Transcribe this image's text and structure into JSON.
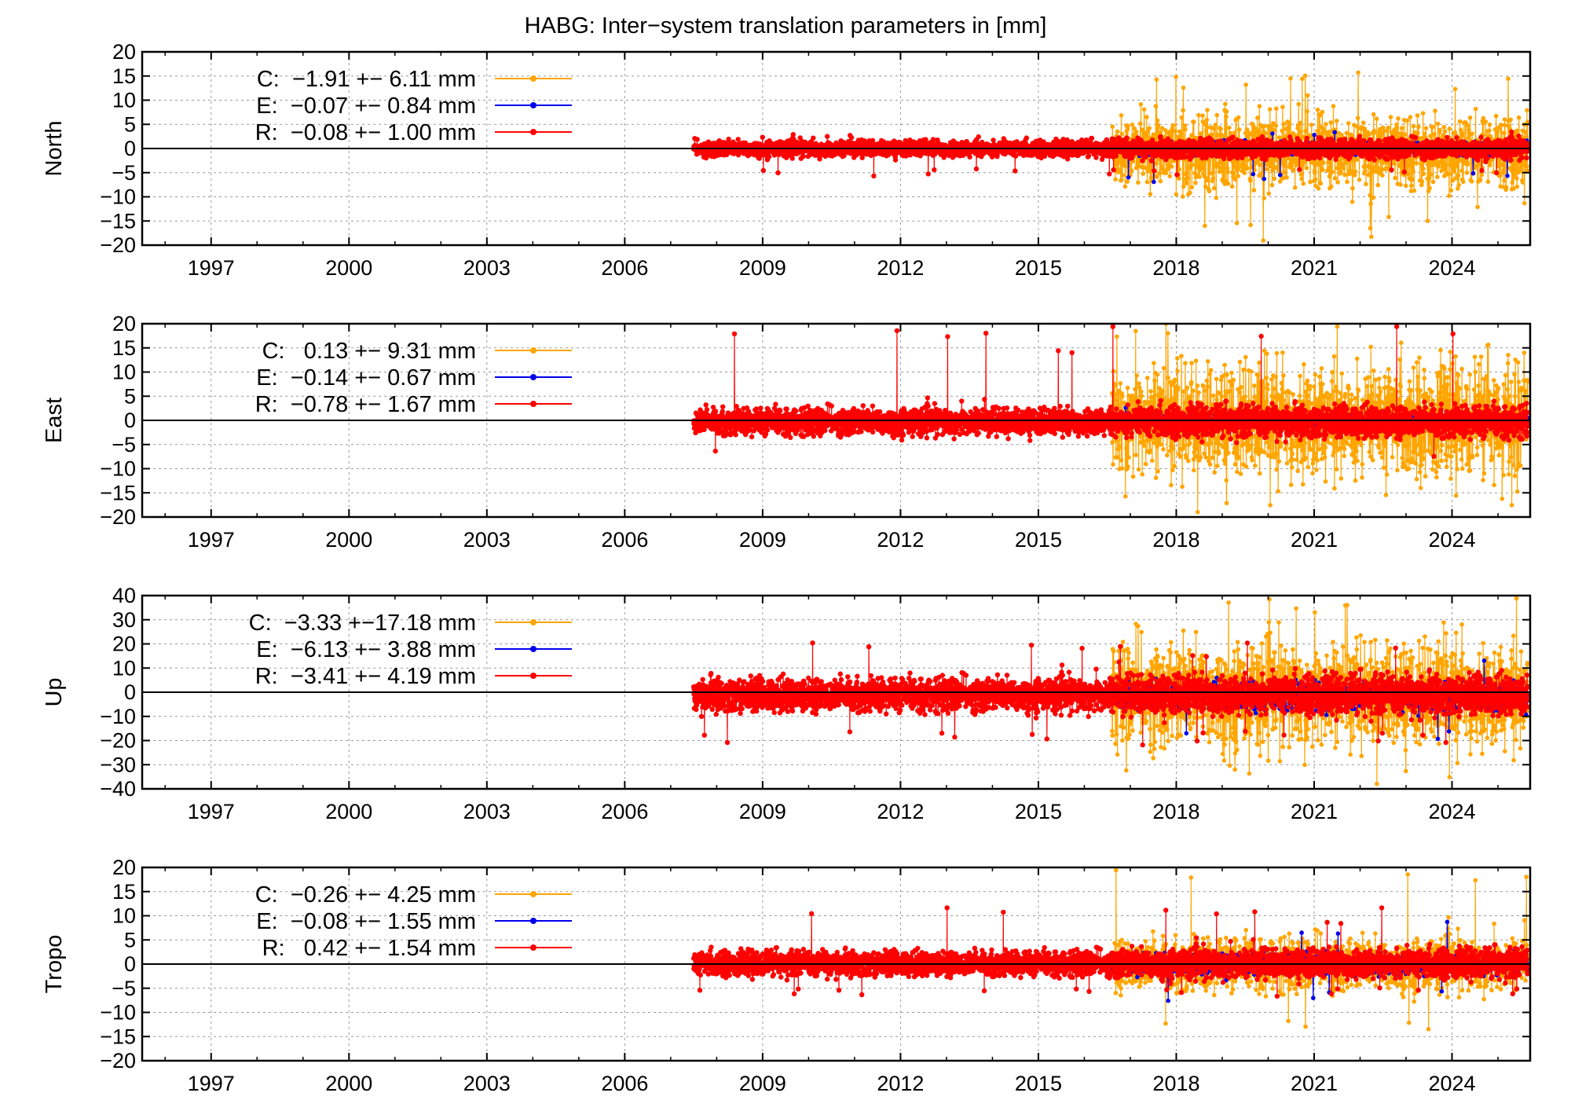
{
  "title": "HABG: Inter−system translation parameters in [mm]",
  "colors": {
    "C": "#ffa500",
    "E": "#0000ee",
    "R": "#ff0000",
    "axis": "#000000",
    "grid": "#9a9a9a"
  },
  "chart_data": [
    {
      "type": "scatter",
      "ylabel": "North",
      "xlim": [
        1995.5,
        2025.7
      ],
      "ylim": [
        -20,
        20
      ],
      "yticks": [
        -20,
        -15,
        -10,
        -5,
        0,
        5,
        10,
        15,
        20
      ],
      "xticks": [
        1997,
        2000,
        2003,
        2006,
        2009,
        2012,
        2015,
        2018,
        2021,
        2024
      ],
      "grid": true,
      "legend_position": "top-left",
      "series": [
        {
          "name": "C",
          "label": "C:  −1.91 +− 6.11 mm",
          "color": "C",
          "start": 2016.6,
          "end": 2025.65,
          "sigma": 6.11,
          "mean": -1.91,
          "spike_top": 17.5,
          "spike_bottom": -20
        },
        {
          "name": "E",
          "label": "E:  −0.07 +− 0.84 mm",
          "color": "E",
          "start": 2016.6,
          "end": 2025.65,
          "sigma": 0.84,
          "mean": -0.07,
          "spike_top": 3.5,
          "spike_bottom": -7
        },
        {
          "name": "R",
          "label": "R:  −0.08 +− 1.00 mm",
          "color": "R",
          "start": 2007.5,
          "end": 2025.65,
          "sigma": 1.0,
          "mean": -0.08,
          "spike_top": 2.5,
          "spike_bottom": -6
        }
      ]
    },
    {
      "type": "scatter",
      "ylabel": "East",
      "xlim": [
        1995.5,
        2025.7
      ],
      "ylim": [
        -20,
        20
      ],
      "yticks": [
        -20,
        -15,
        -10,
        -5,
        0,
        5,
        10,
        15,
        20
      ],
      "xticks": [
        1997,
        2000,
        2003,
        2006,
        2009,
        2012,
        2015,
        2018,
        2021,
        2024
      ],
      "grid": true,
      "legend_position": "top-left",
      "series": [
        {
          "name": "C",
          "label": "C:   0.13 +− 9.31 mm",
          "color": "C",
          "start": 2016.6,
          "end": 2025.65,
          "sigma": 9.31,
          "mean": 0.13,
          "spike_top": 20,
          "spike_bottom": -20
        },
        {
          "name": "E",
          "label": "E:  −0.14 +− 0.67 mm",
          "color": "E",
          "start": 2016.6,
          "end": 2025.65,
          "sigma": 0.67,
          "mean": -0.14,
          "spike_top": 3,
          "spike_bottom": -3
        },
        {
          "name": "R",
          "label": "R:  −0.78 +− 1.67 mm",
          "color": "R",
          "start": 2007.5,
          "end": 2025.65,
          "sigma": 1.67,
          "mean": -0.78,
          "spike_top": 20,
          "spike_bottom": -4
        }
      ]
    },
    {
      "type": "scatter",
      "ylabel": "Up",
      "xlim": [
        1995.5,
        2025.7
      ],
      "ylim": [
        -40,
        40
      ],
      "yticks": [
        -40,
        -30,
        -20,
        -10,
        0,
        10,
        20,
        30,
        40
      ],
      "xticks": [
        1997,
        2000,
        2003,
        2006,
        2009,
        2012,
        2015,
        2018,
        2021,
        2024
      ],
      "grid": true,
      "legend_position": "top-left",
      "series": [
        {
          "name": "C",
          "label": "C:  −3.33 +−17.18 mm",
          "color": "C",
          "start": 2016.6,
          "end": 2025.65,
          "sigma": 17.18,
          "mean": -3.33,
          "spike_top": 40,
          "spike_bottom": -40
        },
        {
          "name": "E",
          "label": "E:  −6.13 +− 3.88 mm",
          "color": "E",
          "start": 2016.6,
          "end": 2025.65,
          "sigma": 3.88,
          "mean": -6.13,
          "spike_top": 15,
          "spike_bottom": -22
        },
        {
          "name": "R",
          "label": "R:  −3.41 +− 4.19 mm",
          "color": "R",
          "start": 2007.5,
          "end": 2025.65,
          "sigma": 4.19,
          "mean": -3.41,
          "spike_top": 21,
          "spike_bottom": -23
        }
      ]
    },
    {
      "type": "scatter",
      "ylabel": "Tropo",
      "xlim": [
        1995.5,
        2025.7
      ],
      "ylim": [
        -20,
        20
      ],
      "yticks": [
        -20,
        -15,
        -10,
        -5,
        0,
        5,
        10,
        15,
        20
      ],
      "xticks": [
        1997,
        2000,
        2003,
        2006,
        2009,
        2012,
        2015,
        2018,
        2021,
        2024
      ],
      "grid": true,
      "legend_position": "top-left",
      "series": [
        {
          "name": "C",
          "label": "C:  −0.26 +− 4.25 mm",
          "color": "C",
          "start": 2016.6,
          "end": 2025.65,
          "sigma": 4.25,
          "mean": -0.26,
          "spike_top": 20,
          "spike_bottom": -16
        },
        {
          "name": "E",
          "label": "E:  −0.08 +− 1.55 mm",
          "color": "E",
          "start": 2016.6,
          "end": 2025.65,
          "sigma": 1.55,
          "mean": -0.08,
          "spike_top": 9,
          "spike_bottom": -8
        },
        {
          "name": "R",
          "label": "R:   0.42 +− 1.54 mm",
          "color": "R",
          "start": 2007.5,
          "end": 2025.65,
          "sigma": 1.54,
          "mean": 0.42,
          "spike_top": 12,
          "spike_bottom": -7
        }
      ]
    }
  ]
}
